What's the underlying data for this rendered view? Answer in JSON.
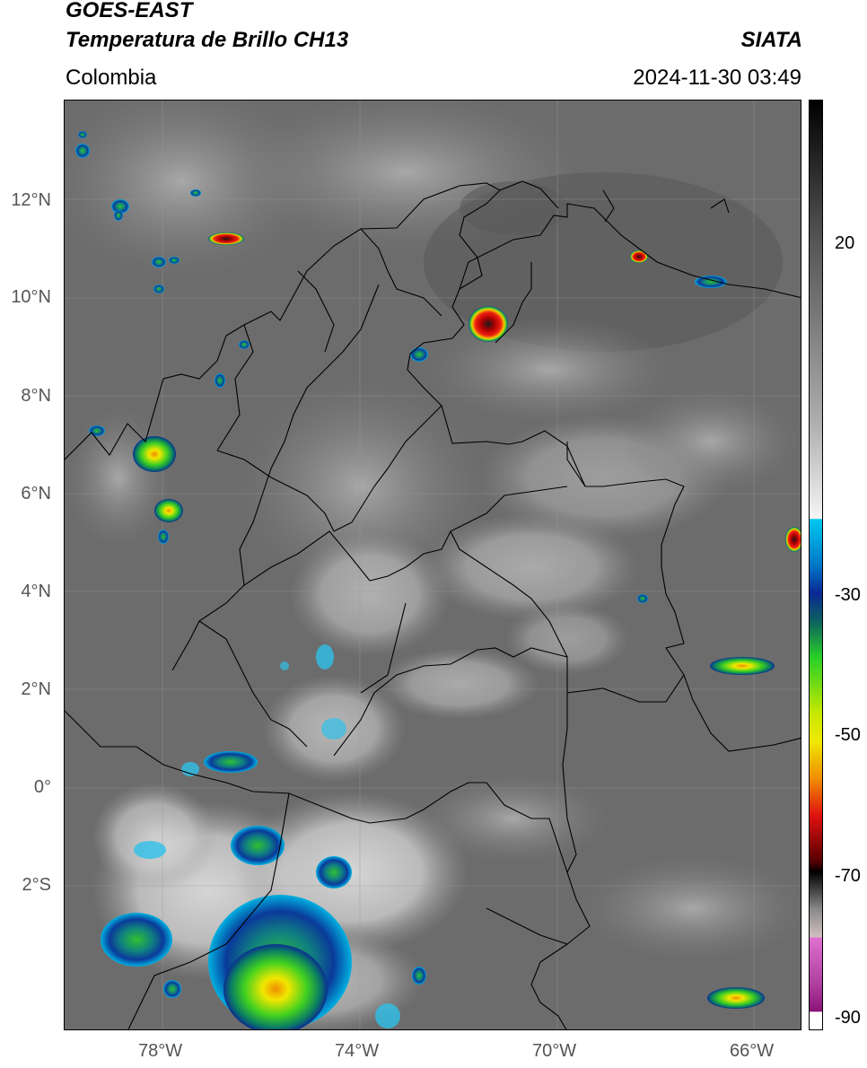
{
  "header": {
    "satellite": "GOES-EAST",
    "product": "Temperatura de Brillo CH13",
    "region": "Colombia",
    "agency": "SIATA",
    "datetime": "2024-11-30 03:49"
  },
  "axes": {
    "lat_ticks": [
      "12°N",
      "10°N",
      "8°N",
      "6°N",
      "4°N",
      "2°N",
      "0°",
      "2°S"
    ],
    "lon_ticks": [
      "78°W",
      "74°W",
      "70°W",
      "66°W"
    ]
  },
  "colorbar": {
    "labels": [
      "20",
      "-30",
      "-50",
      "-70",
      "-90"
    ],
    "colors": {
      "warm_top": "#000000",
      "gray_mid": "#808080",
      "white": "#f5f5f5",
      "cyan": "#00c8f0",
      "blue": "#0a2896",
      "green": "#28d028",
      "yellow": "#f0e800",
      "orange": "#f08c00",
      "red": "#e01010",
      "dark_red": "#500000",
      "magenta": "#d050c8",
      "purple": "#8c1478"
    }
  },
  "map": {
    "background_color": "#6e6e6e",
    "grid": true,
    "boundaries_color": "#000000"
  }
}
